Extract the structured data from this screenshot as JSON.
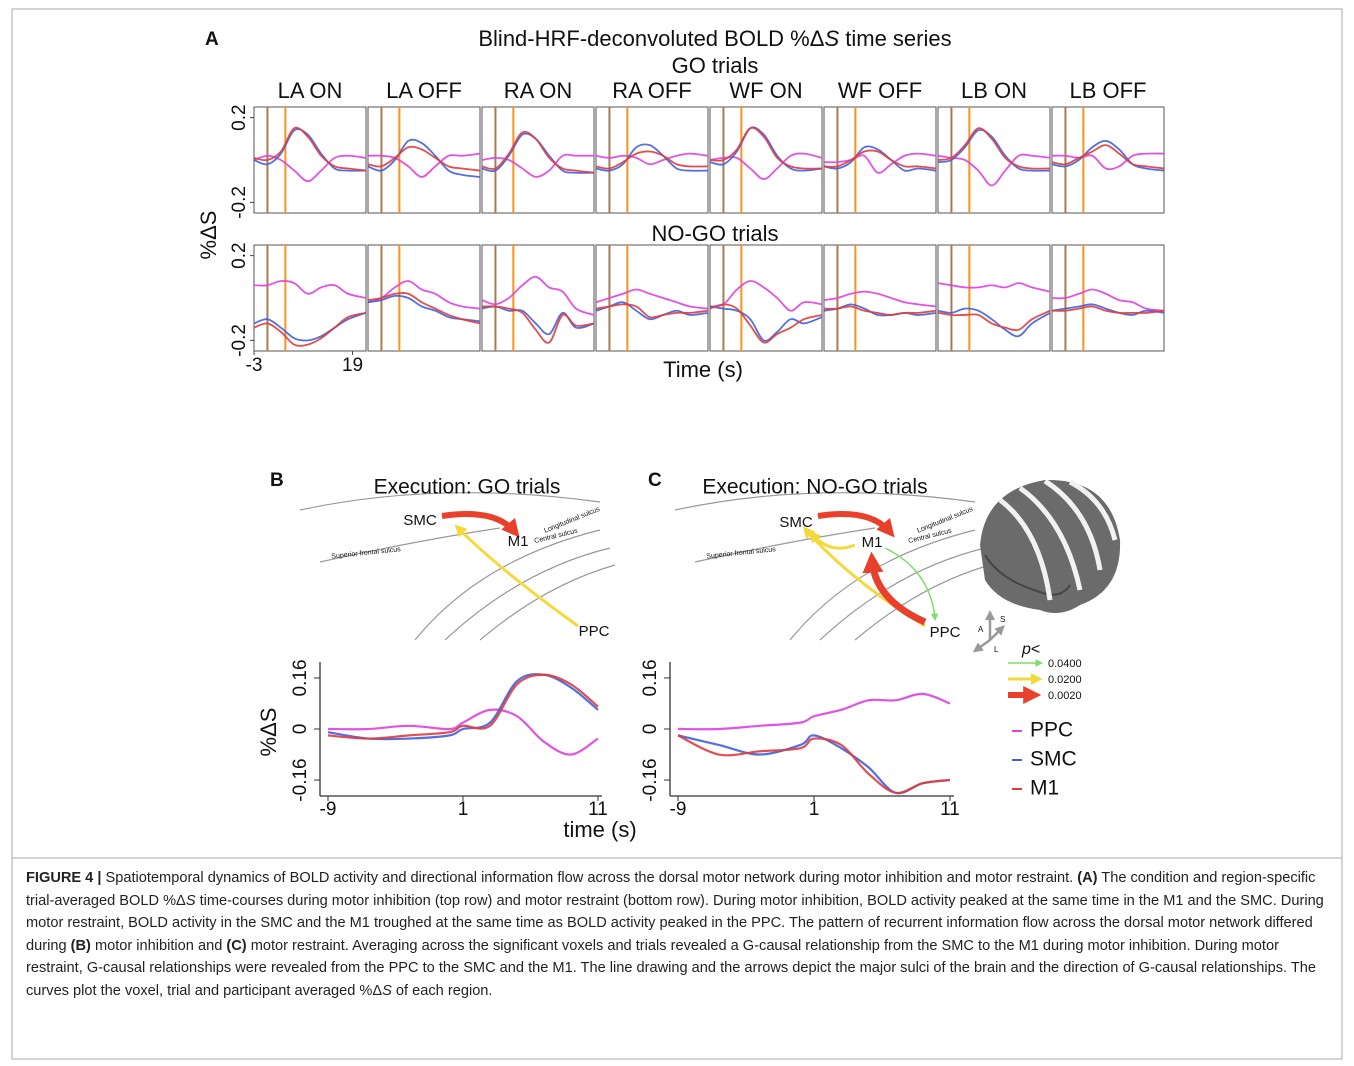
{
  "chart_data": [
    {
      "type": "line_grid",
      "label": "A",
      "title": [
        "Blind-HRF-deconvoluted BOLD %Δ",
        "S",
        " time series"
      ],
      "x_label": "Time (s)",
      "y_label": "%ΔS",
      "x": [
        -3,
        0,
        3,
        6,
        9,
        12,
        15,
        18,
        22
      ],
      "xlim": [
        -3,
        22
      ],
      "xticks": [
        -3,
        19
      ],
      "ylim": [
        -0.25,
        0.25
      ],
      "yticks": [
        0.2,
        -0.2
      ],
      "events": [
        {
          "x": 0,
          "color": "#a67c52"
        },
        {
          "x": 4,
          "color": "#f7941d"
        }
      ],
      "colors": [
        "#e040e0",
        "#3f5fe0",
        "#e03c3c"
      ],
      "columns": [
        "LA ON",
        "LA OFF",
        "RA ON",
        "RA OFF",
        "WF ON",
        "WF OFF",
        "LB ON",
        "LB OFF"
      ],
      "rows": [
        {
          "title": "GO trials",
          "panels": [
            [
              [
                0,
                0.02,
                0,
                -0.05,
                -0.1,
                -0.05,
                0.01,
                0.02,
                0.01
              ],
              [
                0,
                -0.02,
                0.03,
                0.14,
                0.12,
                0.03,
                -0.04,
                -0.05,
                -0.05
              ],
              [
                0.01,
                0,
                0.04,
                0.15,
                0.11,
                0.02,
                -0.03,
                -0.04,
                -0.05
              ]
            ],
            [
              [
                0.02,
                0.02,
                0.01,
                -0.03,
                -0.08,
                -0.03,
                0.02,
                0.02,
                0.03
              ],
              [
                -0.03,
                -0.05,
                0,
                0.09,
                0.08,
                0.02,
                -0.05,
                -0.07,
                -0.08
              ],
              [
                -0.02,
                -0.03,
                0.01,
                0.06,
                0.05,
                0.01,
                -0.03,
                -0.04,
                -0.05
              ]
            ],
            [
              [
                0,
                0.01,
                0,
                -0.04,
                -0.08,
                -0.05,
                0.02,
                0.02,
                0.02
              ],
              [
                -0.04,
                -0.05,
                0.02,
                0.12,
                0.1,
                0.02,
                -0.05,
                -0.06,
                -0.06
              ],
              [
                -0.03,
                -0.04,
                0.03,
                0.13,
                0.1,
                0.01,
                -0.04,
                -0.05,
                -0.06
              ]
            ],
            [
              [
                0.02,
                0.01,
                0.02,
                0.01,
                -0.02,
                0,
                0.02,
                0.03,
                0.02
              ],
              [
                -0.04,
                -0.05,
                -0.02,
                0.06,
                0.07,
                0.02,
                -0.04,
                -0.05,
                -0.05
              ],
              [
                -0.03,
                -0.04,
                -0.01,
                0.03,
                0.04,
                0.02,
                -0.02,
                -0.03,
                -0.03
              ]
            ],
            [
              [
                0,
                0.01,
                0.01,
                -0.04,
                -0.09,
                -0.04,
                0.02,
                0.03,
                0.01
              ],
              [
                -0.01,
                -0.02,
                0.04,
                0.15,
                0.12,
                0.02,
                -0.04,
                -0.05,
                -0.04
              ],
              [
                0,
                0,
                0.05,
                0.15,
                0.11,
                0.01,
                -0.03,
                -0.04,
                -0.04
              ]
            ],
            [
              [
                -0.01,
                -0.01,
                0,
                0.02,
                -0.06,
                -0.02,
                0.02,
                0.03,
                0.02
              ],
              [
                -0.03,
                -0.04,
                -0.01,
                0.06,
                0.05,
                0,
                -0.05,
                -0.04,
                -0.05
              ],
              [
                -0.03,
                -0.03,
                0,
                0.04,
                0.04,
                0,
                -0.03,
                -0.03,
                -0.04
              ]
            ],
            [
              [
                0.02,
                0.01,
                0,
                -0.05,
                -0.12,
                -0.05,
                0.02,
                0.02,
                0.01
              ],
              [
                -0.01,
                0,
                0.06,
                0.14,
                0.11,
                0.02,
                -0.04,
                -0.05,
                -0.05
              ],
              [
                0,
                0.01,
                0.07,
                0.15,
                0.1,
                0.01,
                -0.03,
                -0.04,
                -0.04
              ]
            ],
            [
              [
                0.02,
                0.02,
                0.01,
                0.02,
                -0.04,
                -0.03,
                0.02,
                0.03,
                0.03
              ],
              [
                -0.02,
                -0.03,
                0,
                0.06,
                0.09,
                0.05,
                -0.02,
                -0.04,
                -0.05
              ],
              [
                -0.01,
                -0.02,
                0.01,
                0.04,
                0.07,
                0.03,
                -0.02,
                -0.03,
                -0.04
              ]
            ]
          ]
        },
        {
          "title": "NO-GO trials",
          "panels": [
            [
              [
                0.06,
                0.06,
                0.08,
                0.07,
                0.02,
                0.05,
                0.06,
                0.02,
                0
              ],
              [
                -0.12,
                -0.1,
                -0.14,
                -0.19,
                -0.2,
                -0.18,
                -0.14,
                -0.1,
                -0.07
              ],
              [
                -0.14,
                -0.12,
                -0.16,
                -0.22,
                -0.22,
                -0.19,
                -0.14,
                -0.09,
                -0.07
              ]
            ],
            [
              [
                -0.02,
                0,
                0.05,
                0.08,
                0.04,
                0.02,
                -0.02,
                -0.04,
                -0.05
              ],
              [
                -0.02,
                -0.01,
                0.01,
                0,
                -0.04,
                -0.06,
                -0.09,
                -0.1,
                -0.11
              ],
              [
                -0.01,
                0,
                0.02,
                0.02,
                -0.02,
                -0.05,
                -0.08,
                -0.1,
                -0.12
              ]
            ],
            [
              [
                -0.01,
                -0.03,
                0,
                0.06,
                0.1,
                0.05,
                0.03,
                -0.05,
                -0.08
              ],
              [
                -0.05,
                -0.04,
                -0.06,
                -0.06,
                -0.12,
                -0.17,
                -0.07,
                -0.14,
                -0.12
              ],
              [
                -0.04,
                -0.04,
                -0.05,
                -0.07,
                -0.15,
                -0.21,
                -0.08,
                -0.13,
                -0.12
              ]
            ],
            [
              [
                -0.02,
                0,
                0.02,
                0.04,
                0.02,
                0,
                -0.02,
                -0.04,
                -0.05
              ],
              [
                -0.06,
                -0.04,
                -0.02,
                -0.06,
                -0.1,
                -0.08,
                -0.06,
                -0.08,
                -0.07
              ],
              [
                -0.05,
                -0.04,
                -0.03,
                -0.04,
                -0.09,
                -0.08,
                -0.07,
                -0.07,
                -0.06
              ]
            ],
            [
              [
                -0.04,
                -0.03,
                0.04,
                0.08,
                0.05,
                0,
                -0.06,
                -0.02,
                -0.03
              ],
              [
                -0.04,
                -0.05,
                -0.06,
                -0.1,
                -0.2,
                -0.16,
                -0.1,
                -0.12,
                -0.09
              ],
              [
                -0.05,
                -0.03,
                -0.05,
                -0.13,
                -0.21,
                -0.17,
                -0.14,
                -0.1,
                -0.08
              ]
            ],
            [
              [
                -0.01,
                0,
                0.02,
                0.03,
                0.02,
                0,
                -0.02,
                -0.03,
                -0.04
              ],
              [
                -0.06,
                -0.05,
                -0.03,
                -0.05,
                -0.08,
                -0.08,
                -0.07,
                -0.08,
                -0.07
              ],
              [
                -0.05,
                -0.05,
                -0.04,
                -0.06,
                -0.07,
                -0.08,
                -0.07,
                -0.07,
                -0.06
              ]
            ],
            [
              [
                0.07,
                0.06,
                0.05,
                0.05,
                0.06,
                0.05,
                0.07,
                0.05,
                0.03
              ],
              [
                -0.06,
                -0.07,
                -0.05,
                -0.06,
                -0.1,
                -0.15,
                -0.18,
                -0.12,
                -0.07
              ],
              [
                -0.07,
                -0.08,
                -0.08,
                -0.08,
                -0.12,
                -0.14,
                -0.15,
                -0.1,
                -0.06
              ]
            ],
            [
              [
                0,
                0,
                0.02,
                0.04,
                0.02,
                -0.01,
                -0.02,
                -0.05,
                -0.06
              ],
              [
                -0.06,
                -0.05,
                -0.04,
                -0.03,
                -0.05,
                -0.07,
                -0.08,
                -0.06,
                -0.07
              ],
              [
                -0.06,
                -0.06,
                -0.05,
                -0.04,
                -0.06,
                -0.07,
                -0.07,
                -0.07,
                -0.06
              ]
            ]
          ]
        }
      ]
    },
    {
      "type": "line",
      "label": "B",
      "title": "Execution: GO trials",
      "y_label": "%ΔS",
      "x_label": "time (s)",
      "x": [
        -9,
        -6,
        -3,
        0,
        1,
        3,
        5,
        7,
        9,
        11
      ],
      "xlim": [
        -9,
        11
      ],
      "xticks": [
        -9,
        1,
        11
      ],
      "ylim": [
        -0.21,
        0.21
      ],
      "yticks": [
        0.16,
        0,
        -0.16
      ],
      "series": [
        {
          "color": "#e040e0",
          "values": [
            0,
            0,
            0.01,
            0,
            0.02,
            0.06,
            0.04,
            -0.04,
            -0.08,
            -0.03
          ]
        },
        {
          "color": "#3f5fe0",
          "values": [
            -0.01,
            -0.03,
            -0.03,
            -0.02,
            0,
            0.02,
            0.15,
            0.17,
            0.13,
            0.06
          ]
        },
        {
          "color": "#e03c3c",
          "values": [
            -0.02,
            -0.03,
            -0.02,
            -0.01,
            0.01,
            0.01,
            0.14,
            0.17,
            0.14,
            0.07
          ]
        }
      ]
    },
    {
      "type": "line",
      "label": "C",
      "title": "Execution: NO-GO trials",
      "x": [
        -9,
        -6,
        -3,
        0,
        1,
        3,
        5,
        7,
        9,
        11
      ],
      "xlim": [
        -9,
        11
      ],
      "xticks": [
        -9,
        1,
        11
      ],
      "ylim": [
        -0.21,
        0.21
      ],
      "yticks": [
        0.16,
        0,
        -0.16
      ],
      "series": [
        {
          "name": "PPC",
          "color": "#e040e0",
          "values": [
            0,
            0,
            0.01,
            0.02,
            0.04,
            0.06,
            0.09,
            0.09,
            0.11,
            0.08
          ]
        },
        {
          "name": "SMC",
          "color": "#3f5fe0",
          "values": [
            -0.02,
            -0.05,
            -0.08,
            -0.05,
            -0.02,
            -0.06,
            -0.12,
            -0.2,
            -0.17,
            -0.16
          ]
        },
        {
          "name": "M1",
          "color": "#e03c3c",
          "values": [
            -0.02,
            -0.08,
            -0.07,
            -0.06,
            -0.03,
            -0.05,
            -0.14,
            -0.2,
            -0.17,
            -0.16
          ]
        }
      ]
    }
  ],
  "diagram_b": {
    "smc": "SMC",
    "m1": "M1",
    "ppc": "PPC",
    "superior": "Superior frontal sulcus",
    "longitudinal": "Longitudinal sulcus",
    "central": "Central sulcus"
  },
  "diagram_c": {
    "smc": "SMC",
    "m1": "M1",
    "ppc": "PPC",
    "superior": "Superior frontal sulcus",
    "longitudinal": "Longitudinal sulcus",
    "central": "Central sulcus"
  },
  "orientation": [
    "S",
    "A",
    "L"
  ],
  "arrow_legend": {
    "title": [
      "p",
      "<"
    ],
    "items": [
      "0.0400",
      "0.0200",
      "0.0020"
    ]
  },
  "caption": [
    {
      "text": "FIGURE 4 |",
      "style": "bold"
    },
    {
      "text": " Spatiotemporal dynamics of BOLD activity and directional information flow across the dorsal motor network during motor inhibition and motor restraint. "
    },
    {
      "text": "(A)",
      "style": "bold"
    },
    {
      "text": " The condition and region-specific trial-averaged BOLD %Δ"
    },
    {
      "text": "S",
      "style": "italic"
    },
    {
      "text": " time-courses during motor inhibition (top row) and motor restraint (bottom row). During motor inhibition, BOLD activity peaked at the same time in the M1 and the SMC. During motor restraint, BOLD activity in the SMC and the M1 troughed at the same time as BOLD activity peaked in the PPC. The pattern of recurrent information flow across the dorsal motor network differed during "
    },
    {
      "text": "(B)",
      "style": "bold"
    },
    {
      "text": " motor inhibition and "
    },
    {
      "text": "(C)",
      "style": "bold"
    },
    {
      "text": " motor restraint. Averaging across the significant voxels and trials revealed a G-causal relationship from the SMC to the M1 during motor inhibition. During motor restraint, G-causal relationships were revealed from the PPC to the SMC and the M1. The line drawing and the arrows depict the major sulci of the brain and the direction of G-causal relationships. The curves plot the voxel, trial and participant averaged %Δ"
    },
    {
      "text": "S",
      "style": "italic"
    },
    {
      "text": " of each region."
    }
  ]
}
